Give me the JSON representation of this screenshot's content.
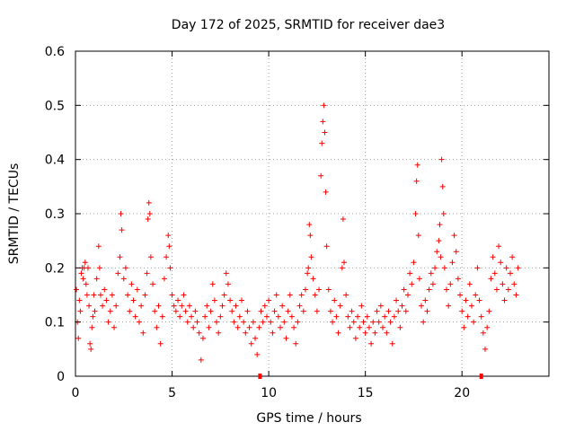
{
  "chart_data": {
    "type": "scatter",
    "title": "Day 172 of 2025, SRMTID for receiver dae3",
    "xlabel": "GPS time / hours",
    "ylabel": "SRMTID / TECUs",
    "xlim": [
      0,
      24.5
    ],
    "ylim": [
      0,
      0.6
    ],
    "xticks": [
      0,
      5,
      10,
      15,
      20
    ],
    "xtick_labels": [
      "0",
      "5",
      "10",
      "15",
      "20"
    ],
    "yticks": [
      0,
      0.1,
      0.2,
      0.3,
      0.4,
      0.5,
      0.6
    ],
    "ytick_labels": [
      "0",
      "0.1",
      "0.2",
      "0.3",
      "0.4",
      "0.5",
      "0.6"
    ],
    "grid": true,
    "marker": "+",
    "marker_color": "#ff0000",
    "series": [
      {
        "name": "SRMTID",
        "points": [
          [
            0.05,
            0.16
          ],
          [
            0.1,
            0.1
          ],
          [
            0.15,
            0.07
          ],
          [
            0.2,
            0.14
          ],
          [
            0.25,
            0.12
          ],
          [
            0.3,
            0.19
          ],
          [
            0.35,
            0.2
          ],
          [
            0.4,
            0.18
          ],
          [
            0.45,
            0.2
          ],
          [
            0.5,
            0.21
          ],
          [
            0.55,
            0.17
          ],
          [
            0.6,
            0.15
          ],
          [
            0.65,
            0.2
          ],
          [
            0.7,
            0.13
          ],
          [
            0.75,
            0.06
          ],
          [
            0.8,
            0.05
          ],
          [
            0.85,
            0.09
          ],
          [
            0.9,
            0.11
          ],
          [
            0.95,
            0.15
          ],
          [
            1.0,
            0.12
          ],
          [
            1.1,
            0.18
          ],
          [
            1.2,
            0.24
          ],
          [
            1.25,
            0.2
          ],
          [
            1.3,
            0.15
          ],
          [
            1.4,
            0.13
          ],
          [
            1.5,
            0.16
          ],
          [
            1.6,
            0.14
          ],
          [
            1.7,
            0.1
          ],
          [
            1.8,
            0.12
          ],
          [
            1.9,
            0.15
          ],
          [
            2.0,
            0.09
          ],
          [
            2.1,
            0.13
          ],
          [
            2.2,
            0.19
          ],
          [
            2.3,
            0.22
          ],
          [
            2.35,
            0.3
          ],
          [
            2.4,
            0.27
          ],
          [
            2.5,
            0.18
          ],
          [
            2.6,
            0.2
          ],
          [
            2.7,
            0.15
          ],
          [
            2.8,
            0.12
          ],
          [
            2.9,
            0.17
          ],
          [
            3.0,
            0.14
          ],
          [
            3.1,
            0.11
          ],
          [
            3.2,
            0.16
          ],
          [
            3.3,
            0.1
          ],
          [
            3.4,
            0.13
          ],
          [
            3.5,
            0.08
          ],
          [
            3.6,
            0.15
          ],
          [
            3.7,
            0.19
          ],
          [
            3.75,
            0.29
          ],
          [
            3.8,
            0.32
          ],
          [
            3.85,
            0.3
          ],
          [
            3.9,
            0.22
          ],
          [
            4.0,
            0.17
          ],
          [
            4.1,
            0.12
          ],
          [
            4.2,
            0.09
          ],
          [
            4.3,
            0.13
          ],
          [
            4.4,
            0.06
          ],
          [
            4.5,
            0.11
          ],
          [
            4.6,
            0.18
          ],
          [
            4.7,
            0.22
          ],
          [
            4.8,
            0.26
          ],
          [
            4.85,
            0.24
          ],
          [
            4.9,
            0.2
          ],
          [
            5.0,
            0.15
          ],
          [
            5.1,
            0.13
          ],
          [
            5.2,
            0.12
          ],
          [
            5.3,
            0.14
          ],
          [
            5.4,
            0.11
          ],
          [
            5.5,
            0.13
          ],
          [
            5.6,
            0.15
          ],
          [
            5.7,
            0.12
          ],
          [
            5.8,
            0.1
          ],
          [
            5.9,
            0.13
          ],
          [
            6.0,
            0.11
          ],
          [
            6.1,
            0.09
          ],
          [
            6.2,
            0.12
          ],
          [
            6.3,
            0.1
          ],
          [
            6.4,
            0.08
          ],
          [
            6.5,
            0.03
          ],
          [
            6.6,
            0.07
          ],
          [
            6.7,
            0.11
          ],
          [
            6.8,
            0.13
          ],
          [
            6.9,
            0.09
          ],
          [
            7.0,
            0.12
          ],
          [
            7.1,
            0.17
          ],
          [
            7.2,
            0.14
          ],
          [
            7.3,
            0.1
          ],
          [
            7.4,
            0.08
          ],
          [
            7.5,
            0.11
          ],
          [
            7.6,
            0.13
          ],
          [
            7.7,
            0.15
          ],
          [
            7.8,
            0.19
          ],
          [
            7.9,
            0.17
          ],
          [
            8.0,
            0.14
          ],
          [
            8.1,
            0.12
          ],
          [
            8.2,
            0.1
          ],
          [
            8.3,
            0.13
          ],
          [
            8.4,
            0.09
          ],
          [
            8.5,
            0.11
          ],
          [
            8.6,
            0.14
          ],
          [
            8.7,
            0.1
          ],
          [
            8.8,
            0.08
          ],
          [
            8.9,
            0.12
          ],
          [
            9.0,
            0.09
          ],
          [
            9.1,
            0.06
          ],
          [
            9.2,
            0.1
          ],
          [
            9.3,
            0.07
          ],
          [
            9.4,
            0.04
          ],
          [
            9.5,
            0.09
          ],
          [
            9.6,
            0.12
          ],
          [
            9.7,
            0.1
          ],
          [
            9.8,
            0.13
          ],
          [
            9.9,
            0.11
          ],
          [
            10.0,
            0.14
          ],
          [
            10.1,
            0.1
          ],
          [
            10.2,
            0.08
          ],
          [
            10.3,
            0.12
          ],
          [
            10.4,
            0.15
          ],
          [
            10.5,
            0.11
          ],
          [
            10.6,
            0.09
          ],
          [
            10.7,
            0.13
          ],
          [
            10.8,
            0.1
          ],
          [
            10.9,
            0.07
          ],
          [
            11.0,
            0.12
          ],
          [
            11.1,
            0.15
          ],
          [
            11.2,
            0.11
          ],
          [
            11.3,
            0.09
          ],
          [
            11.4,
            0.06
          ],
          [
            11.5,
            0.1
          ],
          [
            11.6,
            0.13
          ],
          [
            11.7,
            0.15
          ],
          [
            11.8,
            0.12
          ],
          [
            11.9,
            0.16
          ],
          [
            12.0,
            0.19
          ],
          [
            12.05,
            0.2
          ],
          [
            12.1,
            0.28
          ],
          [
            12.15,
            0.26
          ],
          [
            12.2,
            0.22
          ],
          [
            12.3,
            0.18
          ],
          [
            12.4,
            0.15
          ],
          [
            12.5,
            0.12
          ],
          [
            12.6,
            0.16
          ],
          [
            12.7,
            0.37
          ],
          [
            12.75,
            0.43
          ],
          [
            12.8,
            0.47
          ],
          [
            12.85,
            0.5
          ],
          [
            12.9,
            0.45
          ],
          [
            12.95,
            0.34
          ],
          [
            13.0,
            0.24
          ],
          [
            13.1,
            0.16
          ],
          [
            13.2,
            0.12
          ],
          [
            13.3,
            0.1
          ],
          [
            13.4,
            0.14
          ],
          [
            13.5,
            0.11
          ],
          [
            13.6,
            0.08
          ],
          [
            13.7,
            0.13
          ],
          [
            13.8,
            0.2
          ],
          [
            13.85,
            0.29
          ],
          [
            13.9,
            0.21
          ],
          [
            14.0,
            0.15
          ],
          [
            14.1,
            0.11
          ],
          [
            14.2,
            0.09
          ],
          [
            14.3,
            0.12
          ],
          [
            14.4,
            0.1
          ],
          [
            14.5,
            0.07
          ],
          [
            14.6,
            0.11
          ],
          [
            14.7,
            0.09
          ],
          [
            14.8,
            0.13
          ],
          [
            14.9,
            0.1
          ],
          [
            15.0,
            0.08
          ],
          [
            15.1,
            0.11
          ],
          [
            15.2,
            0.09
          ],
          [
            15.3,
            0.06
          ],
          [
            15.4,
            0.1
          ],
          [
            15.5,
            0.08
          ],
          [
            15.6,
            0.12
          ],
          [
            15.7,
            0.1
          ],
          [
            15.8,
            0.13
          ],
          [
            15.9,
            0.09
          ],
          [
            16.0,
            0.11
          ],
          [
            16.1,
            0.08
          ],
          [
            16.2,
            0.12
          ],
          [
            16.3,
            0.1
          ],
          [
            16.4,
            0.06
          ],
          [
            16.5,
            0.11
          ],
          [
            16.6,
            0.14
          ],
          [
            16.7,
            0.12
          ],
          [
            16.8,
            0.09
          ],
          [
            16.9,
            0.13
          ],
          [
            17.0,
            0.16
          ],
          [
            17.1,
            0.12
          ],
          [
            17.2,
            0.15
          ],
          [
            17.3,
            0.19
          ],
          [
            17.4,
            0.17
          ],
          [
            17.5,
            0.21
          ],
          [
            17.6,
            0.3
          ],
          [
            17.65,
            0.36
          ],
          [
            17.7,
            0.39
          ],
          [
            17.75,
            0.26
          ],
          [
            17.8,
            0.18
          ],
          [
            17.9,
            0.13
          ],
          [
            18.0,
            0.1
          ],
          [
            18.1,
            0.14
          ],
          [
            18.2,
            0.12
          ],
          [
            18.3,
            0.16
          ],
          [
            18.4,
            0.19
          ],
          [
            18.5,
            0.17
          ],
          [
            18.6,
            0.2
          ],
          [
            18.7,
            0.23
          ],
          [
            18.8,
            0.25
          ],
          [
            18.85,
            0.28
          ],
          [
            18.9,
            0.22
          ],
          [
            18.95,
            0.4
          ],
          [
            19.0,
            0.35
          ],
          [
            19.05,
            0.3
          ],
          [
            19.1,
            0.2
          ],
          [
            19.2,
            0.16
          ],
          [
            19.3,
            0.13
          ],
          [
            19.4,
            0.17
          ],
          [
            19.5,
            0.21
          ],
          [
            19.6,
            0.26
          ],
          [
            19.7,
            0.23
          ],
          [
            19.8,
            0.18
          ],
          [
            19.9,
            0.15
          ],
          [
            20.0,
            0.12
          ],
          [
            20.1,
            0.09
          ],
          [
            20.2,
            0.14
          ],
          [
            20.3,
            0.11
          ],
          [
            20.4,
            0.17
          ],
          [
            20.5,
            0.13
          ],
          [
            20.6,
            0.1
          ],
          [
            20.7,
            0.15
          ],
          [
            20.8,
            0.2
          ],
          [
            20.9,
            0.14
          ],
          [
            21.0,
            0.11
          ],
          [
            21.1,
            0.08
          ],
          [
            21.2,
            0.05
          ],
          [
            21.3,
            0.09
          ],
          [
            21.4,
            0.12
          ],
          [
            21.5,
            0.18
          ],
          [
            21.6,
            0.22
          ],
          [
            21.7,
            0.19
          ],
          [
            21.8,
            0.16
          ],
          [
            21.9,
            0.24
          ],
          [
            22.0,
            0.21
          ],
          [
            22.1,
            0.17
          ],
          [
            22.2,
            0.14
          ],
          [
            22.3,
            0.2
          ],
          [
            22.4,
            0.16
          ],
          [
            22.5,
            0.19
          ],
          [
            22.6,
            0.22
          ],
          [
            22.7,
            0.17
          ],
          [
            22.8,
            0.15
          ],
          [
            22.9,
            0.2
          ]
        ]
      }
    ],
    "axis_markers": [
      9.55,
      21.0
    ]
  }
}
